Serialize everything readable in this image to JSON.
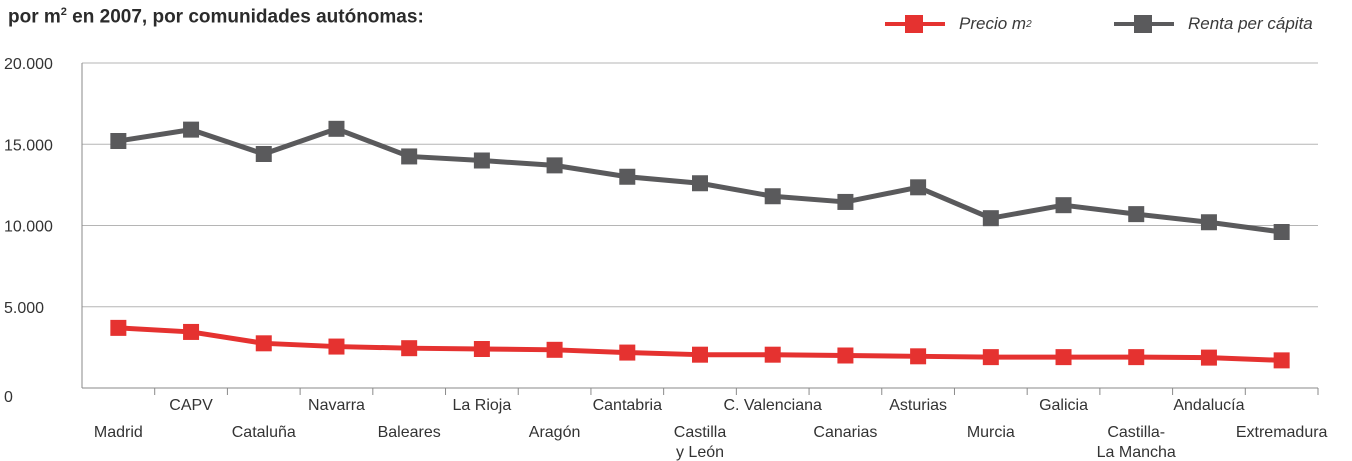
{
  "title_prefix": "por m",
  "title_sup": "2",
  "title_rest": " en 2007, por comunidades autónomas:",
  "legend": [
    {
      "label": "Precio m",
      "sup": "2",
      "color": "#e53230"
    },
    {
      "label": "Renta per cápita",
      "sup": "",
      "color": "#5a5a5c"
    }
  ],
  "chart_data": {
    "type": "line",
    "categories": [
      "Madrid",
      "CAPV",
      "Cataluña",
      "Navarra",
      "Baleares",
      "La Rioja",
      "Aragón",
      "Cantabria",
      "Castilla y León",
      "C. Valenciana",
      "Canarias",
      "Asturias",
      "Murcia",
      "Galicia",
      "Castilla-La Mancha",
      "Andalucía",
      "Extremadura"
    ],
    "category_label_lines": [
      [
        "Madrid"
      ],
      [
        "CAPV"
      ],
      [
        "Cataluña"
      ],
      [
        "Navarra"
      ],
      [
        "Baleares"
      ],
      [
        "La Rioja"
      ],
      [
        "Aragón"
      ],
      [
        "Cantabria"
      ],
      [
        "Castilla",
        "y León"
      ],
      [
        "C. Valenciana"
      ],
      [
        "Canarias"
      ],
      [
        "Asturias"
      ],
      [
        "Murcia"
      ],
      [
        "Galicia"
      ],
      [
        "Castilla-",
        "La Mancha"
      ],
      [
        "Andalucía"
      ],
      [
        "Extremadura"
      ]
    ],
    "series": [
      {
        "name": "Precio m²",
        "color": "#e53230",
        "values": [
          3700,
          3450,
          2750,
          2550,
          2450,
          2400,
          2350,
          2180,
          2050,
          2050,
          2000,
          1950,
          1900,
          1900,
          1900,
          1870,
          1700
        ]
      },
      {
        "name": "Renta per cápita",
        "color": "#5a5a5c",
        "values": [
          15200,
          15900,
          14400,
          15950,
          14250,
          14000,
          13700,
          13000,
          12600,
          11800,
          11450,
          12350,
          10450,
          11250,
          10700,
          10200,
          9600
        ]
      }
    ],
    "ylim": [
      0,
      20000
    ],
    "yticks": [
      0,
      5000,
      10000,
      15000,
      20000
    ],
    "ytick_labels": [
      "0",
      "5.000",
      "10.000",
      "15.000",
      "20.000"
    ],
    "grid": true,
    "legend_position": "top-right"
  }
}
